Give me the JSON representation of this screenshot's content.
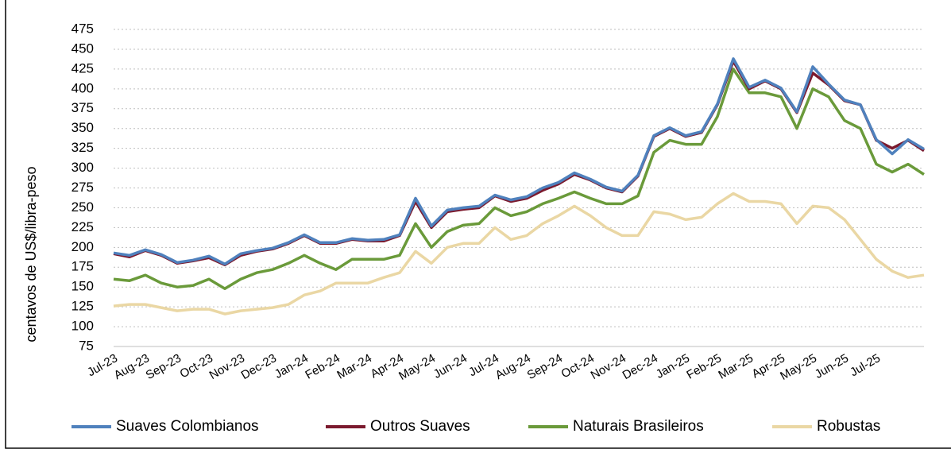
{
  "chart_data": {
    "type": "line",
    "y_label": "centavos de US$/libra-peso",
    "categories": [
      "Jul-23",
      null,
      "Aug-23",
      null,
      "Sep-23",
      null,
      "Oct-23",
      null,
      "Nov-23",
      null,
      "Dec-23",
      null,
      "Jan-24",
      null,
      "Feb-24",
      null,
      "Mar-24",
      null,
      "Apr-24",
      null,
      "May-24",
      null,
      "Jun-24",
      null,
      "Jul-24",
      null,
      "Aug-24",
      null,
      "Sep-24",
      null,
      "Oct-24",
      null,
      "Nov-24",
      null,
      "Dec-24",
      null,
      "Jan-25",
      null,
      "Feb-25",
      null,
      "Mar-25",
      null,
      "Apr-25",
      null,
      "May-25",
      null,
      "Jun-25",
      null,
      "Jul-25",
      null,
      null,
      null
    ],
    "series": [
      {
        "name": "Suaves Colombianos",
        "color": "#4f81bd",
        "values": [
          193,
          190,
          197,
          191,
          181,
          184,
          189,
          179,
          192,
          196,
          199,
          206,
          216,
          206,
          206,
          211,
          209,
          210,
          216,
          262,
          227,
          247,
          250,
          252,
          266,
          260,
          264,
          275,
          282,
          294,
          286,
          276,
          271,
          291,
          341,
          351,
          341,
          346,
          381,
          438,
          402,
          411,
          401,
          371,
          428,
          406,
          386,
          380,
          336,
          318,
          336,
          324
        ]
      },
      {
        "name": "Outros Suaves",
        "color": "#7b1a2e",
        "values": [
          192,
          188,
          196,
          190,
          180,
          183,
          187,
          178,
          190,
          195,
          198,
          205,
          215,
          205,
          205,
          210,
          208,
          208,
          215,
          258,
          225,
          245,
          248,
          250,
          265,
          258,
          262,
          272,
          280,
          292,
          285,
          275,
          270,
          290,
          340,
          350,
          340,
          345,
          380,
          435,
          400,
          410,
          400,
          370,
          420,
          405,
          385,
          380,
          335,
          325,
          335,
          322
        ]
      },
      {
        "name": "Naturais Brasileiros",
        "color": "#6a9a3a",
        "values": [
          160,
          158,
          165,
          155,
          150,
          152,
          160,
          148,
          160,
          168,
          172,
          180,
          190,
          180,
          172,
          185,
          185,
          185,
          190,
          230,
          200,
          220,
          228,
          230,
          250,
          240,
          245,
          255,
          262,
          270,
          262,
          255,
          255,
          265,
          320,
          335,
          330,
          330,
          365,
          425,
          395,
          395,
          390,
          350,
          400,
          390,
          360,
          350,
          305,
          295,
          305,
          292
        ]
      },
      {
        "name": "Robustas",
        "color": "#ead7a4",
        "values": [
          126,
          128,
          128,
          124,
          120,
          122,
          122,
          116,
          120,
          122,
          124,
          128,
          140,
          145,
          155,
          155,
          155,
          162,
          168,
          195,
          180,
          200,
          205,
          205,
          225,
          210,
          215,
          230,
          240,
          252,
          240,
          225,
          215,
          215,
          245,
          242,
          235,
          238,
          255,
          268,
          258,
          258,
          255,
          230,
          252,
          250,
          235,
          210,
          185,
          170,
          162,
          165
        ]
      }
    ],
    "ylim": [
      75,
      475
    ],
    "yticks": [
      75,
      100,
      125,
      150,
      175,
      200,
      225,
      250,
      275,
      300,
      325,
      350,
      375,
      400,
      425,
      450,
      475
    ],
    "grid": true,
    "legend": "bottom"
  }
}
